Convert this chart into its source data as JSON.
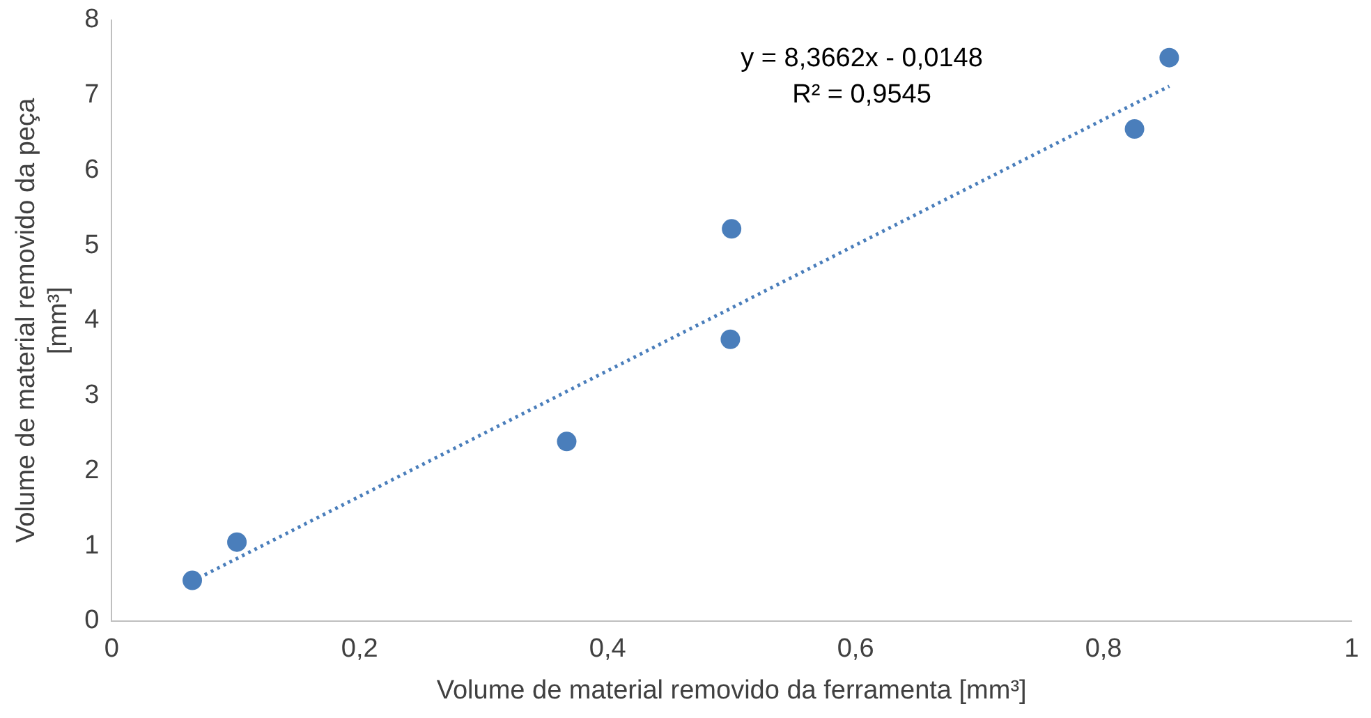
{
  "chart_data": {
    "type": "scatter",
    "xlabel": "Volume de material removido da ferramenta [mm³]",
    "ylabel": "Volume de material removido da peça [mm³]",
    "annotations": [
      "y = 8,3662x - 0,0148",
      "R² = 0,9545"
    ],
    "series": [
      {
        "type": "scatter",
        "color": "#4a7ebb",
        "x": [
          0.065,
          0.101,
          0.367,
          0.499,
          0.5,
          0.825,
          0.853
        ],
        "values": [
          0.54,
          1.05,
          2.39,
          3.75,
          5.22,
          6.55,
          7.5
        ]
      },
      {
        "type": "line",
        "color": "#4a7ebb",
        "line_style": "dotted",
        "marker": "none",
        "x": [
          0.065,
          0.853
        ],
        "values": [
          0.53,
          7.12
        ]
      }
    ],
    "xlim": [
      0,
      1
    ],
    "xticks": [
      0,
      {
        "value": 0.2,
        "label": "0,2"
      },
      {
        "value": 0.4,
        "label": "0,4"
      },
      {
        "value": 0.6,
        "label": "0,6"
      },
      {
        "value": 0.8,
        "label": "0,8"
      },
      1
    ],
    "ylim": [
      0,
      8
    ],
    "yticks": [
      0,
      1,
      2,
      3,
      4,
      5,
      6,
      7,
      8
    ],
    "grid": false,
    "legend": false,
    "marker": "circle"
  }
}
